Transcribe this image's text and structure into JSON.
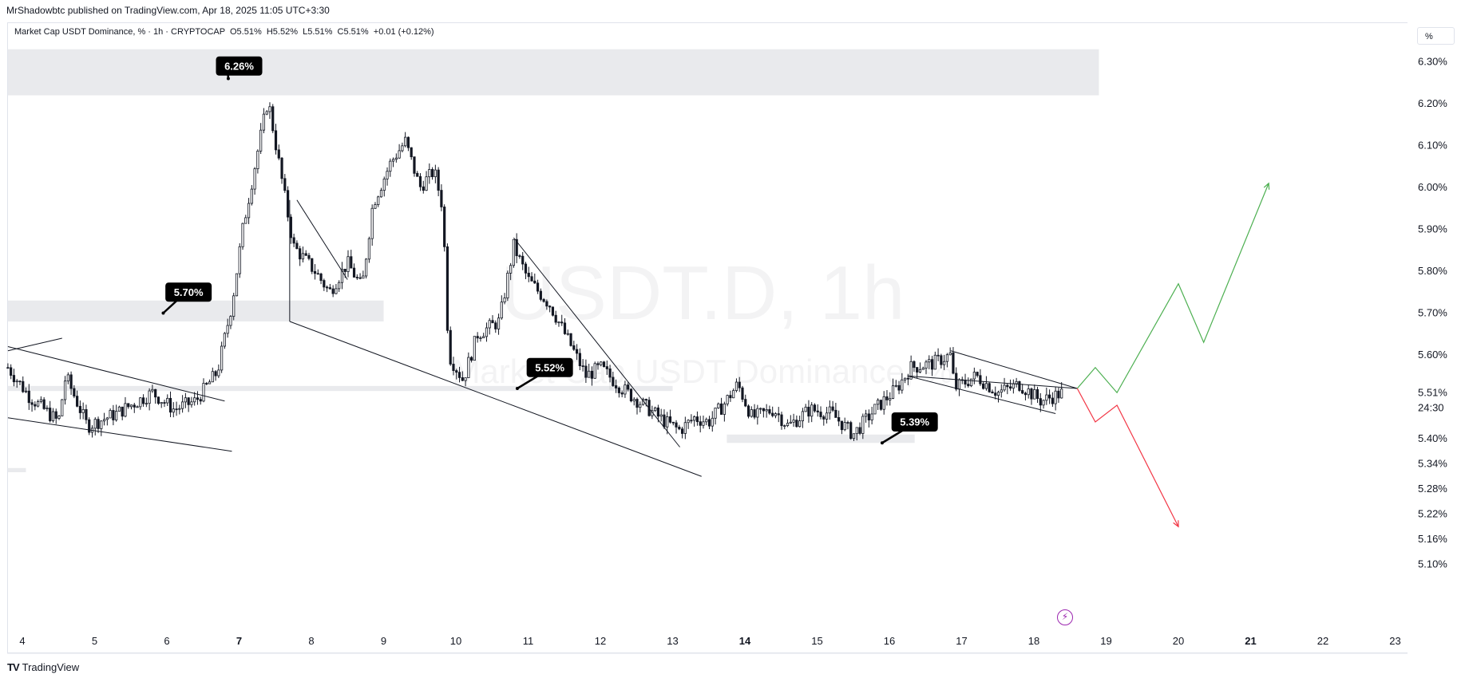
{
  "header": {
    "published": "MrShadowbtc published on TradingView.com, Apr 18, 2025 11:05 UTC+3:30",
    "legend": "Market Cap USDT Dominance, % · 1h · CRYPTOCAP  O5.51%  H5.52%  L5.51%  C5.51%  +0.01 (+0.12%)",
    "scale_button": "%"
  },
  "footer": {
    "brand": "TradingView",
    "logo": "TV"
  },
  "watermark": {
    "symbol": "USDT.D, 1h",
    "name": "Market Cap USDT Dominance, %"
  },
  "icons": {
    "bolt": "lightning-bolt-icon"
  },
  "colors": {
    "up_path": "#4caf50",
    "down_path": "#f23645",
    "zone": "#e9eaed",
    "candles": "#131722"
  },
  "chart_data": {
    "type": "candlestick",
    "title": "Market Cap USDT Dominance, %",
    "interval": "1h",
    "x_ticks": [
      {
        "day": 4,
        "label": "4",
        "bold": false
      },
      {
        "day": 5,
        "label": "5",
        "bold": false
      },
      {
        "day": 6,
        "label": "6",
        "bold": false
      },
      {
        "day": 7,
        "label": "7",
        "bold": true
      },
      {
        "day": 8,
        "label": "8",
        "bold": false
      },
      {
        "day": 9,
        "label": "9",
        "bold": false
      },
      {
        "day": 10,
        "label": "10",
        "bold": false
      },
      {
        "day": 11,
        "label": "11",
        "bold": false
      },
      {
        "day": 12,
        "label": "12",
        "bold": false
      },
      {
        "day": 13,
        "label": "13",
        "bold": false
      },
      {
        "day": 14,
        "label": "14",
        "bold": true
      },
      {
        "day": 15,
        "label": "15",
        "bold": false
      },
      {
        "day": 16,
        "label": "16",
        "bold": false
      },
      {
        "day": 17,
        "label": "17",
        "bold": false
      },
      {
        "day": 18,
        "label": "18",
        "bold": false
      },
      {
        "day": 19,
        "label": "19",
        "bold": false
      },
      {
        "day": 20,
        "label": "20",
        "bold": false
      },
      {
        "day": 21,
        "label": "21",
        "bold": true
      },
      {
        "day": 22,
        "label": "22",
        "bold": false
      },
      {
        "day": 23,
        "label": "23",
        "bold": false
      }
    ],
    "y_ticks": [
      {
        "value": 6.3,
        "label": "6.30%"
      },
      {
        "value": 6.2,
        "label": "6.20%"
      },
      {
        "value": 6.1,
        "label": "6.10%"
      },
      {
        "value": 6.0,
        "label": "6.00%"
      },
      {
        "value": 5.9,
        "label": "5.90%"
      },
      {
        "value": 5.8,
        "label": "5.80%"
      },
      {
        "value": 5.7,
        "label": "5.70%"
      },
      {
        "value": 5.6,
        "label": "5.60%"
      },
      {
        "value": 5.51,
        "label": "5.51%"
      },
      {
        "value": 5.4,
        "label": "5.40%"
      },
      {
        "value": 5.34,
        "label": "5.34%"
      },
      {
        "value": 5.28,
        "label": "5.28%"
      },
      {
        "value": 5.22,
        "label": "5.22%"
      },
      {
        "value": 5.16,
        "label": "5.16%"
      },
      {
        "value": 5.1,
        "label": "5.10%"
      }
    ],
    "current_price": {
      "value": 5.51,
      "label": "5.51%",
      "countdown": "24:30"
    },
    "price_anchors": [
      [
        3.8,
        5.57
      ],
      [
        4.1,
        5.5
      ],
      [
        4.5,
        5.44
      ],
      [
        4.6,
        5.55
      ],
      [
        4.9,
        5.43
      ],
      [
        5.3,
        5.46
      ],
      [
        5.8,
        5.51
      ],
      [
        6.1,
        5.47
      ],
      [
        6.4,
        5.49
      ],
      [
        6.7,
        5.56
      ],
      [
        6.9,
        5.72
      ],
      [
        7.05,
        5.9
      ],
      [
        7.25,
        6.08
      ],
      [
        7.4,
        6.21
      ],
      [
        7.55,
        6.06
      ],
      [
        7.75,
        5.86
      ],
      [
        8.05,
        5.8
      ],
      [
        8.25,
        5.75
      ],
      [
        8.5,
        5.82
      ],
      [
        8.7,
        5.76
      ],
      [
        8.85,
        5.96
      ],
      [
        9.1,
        6.06
      ],
      [
        9.3,
        6.11
      ],
      [
        9.5,
        6.0
      ],
      [
        9.7,
        6.04
      ],
      [
        9.82,
        5.95
      ],
      [
        9.9,
        5.6
      ],
      [
        10.1,
        5.54
      ],
      [
        10.3,
        5.65
      ],
      [
        10.6,
        5.68
      ],
      [
        10.8,
        5.86
      ],
      [
        11.0,
        5.78
      ],
      [
        11.3,
        5.72
      ],
      [
        11.6,
        5.62
      ],
      [
        11.8,
        5.55
      ],
      [
        12.0,
        5.57
      ],
      [
        12.3,
        5.52
      ],
      [
        12.6,
        5.48
      ],
      [
        12.9,
        5.44
      ],
      [
        13.1,
        5.42
      ],
      [
        13.3,
        5.45
      ],
      [
        13.5,
        5.44
      ],
      [
        13.7,
        5.48
      ],
      [
        13.9,
        5.53
      ],
      [
        14.1,
        5.45
      ],
      [
        14.4,
        5.47
      ],
      [
        14.6,
        5.43
      ],
      [
        14.9,
        5.47
      ],
      [
        15.2,
        5.46
      ],
      [
        15.5,
        5.41
      ],
      [
        15.8,
        5.47
      ],
      [
        16.1,
        5.52
      ],
      [
        16.3,
        5.57
      ],
      [
        16.6,
        5.58
      ],
      [
        16.85,
        5.6
      ],
      [
        16.9,
        5.52
      ],
      [
        17.2,
        5.55
      ],
      [
        17.5,
        5.51
      ],
      [
        17.8,
        5.53
      ],
      [
        18.1,
        5.49
      ],
      [
        18.4,
        5.51
      ]
    ],
    "zones": [
      {
        "x1": 3.8,
        "x2": 18.9,
        "y1": 6.33,
        "y2": 6.22
      },
      {
        "x1": 3.8,
        "x2": 9.0,
        "y1": 5.73,
        "y2": 5.68
      },
      {
        "x1": 3.8,
        "x2": 13.0,
        "y1": 5.526,
        "y2": 5.514
      },
      {
        "x1": 13.75,
        "x2": 16.35,
        "y1": 5.41,
        "y2": 5.39
      },
      {
        "x1": 3.8,
        "x2": 4.05,
        "y1": 5.33,
        "y2": 5.32
      }
    ],
    "trendlines": [
      {
        "x1": 3.8,
        "y1": 5.62,
        "x2": 6.8,
        "y2": 5.49
      },
      {
        "x1": 3.8,
        "y1": 5.45,
        "x2": 6.9,
        "y2": 5.37
      },
      {
        "x1": 3.8,
        "y1": 5.61,
        "x2": 4.55,
        "y2": 5.64
      },
      {
        "x1": 7.8,
        "y1": 5.97,
        "x2": 8.5,
        "y2": 5.78
      },
      {
        "x1": 7.7,
        "y1": 5.97,
        "x2": 7.7,
        "y2": 5.68
      },
      {
        "x1": 7.7,
        "y1": 5.68,
        "x2": 13.4,
        "y2": 5.31
      },
      {
        "x1": 10.8,
        "y1": 5.88,
        "x2": 13.1,
        "y2": 5.38
      },
      {
        "x1": 16.25,
        "y1": 5.55,
        "x2": 18.6,
        "y2": 5.52
      },
      {
        "x1": 16.25,
        "y1": 5.55,
        "x2": 18.3,
        "y2": 5.46
      },
      {
        "x1": 16.85,
        "y1": 5.61,
        "x2": 18.6,
        "y2": 5.52
      }
    ],
    "labels": [
      {
        "text": "6.26%",
        "x": 7.0,
        "y": 6.29,
        "tip_x": 6.85,
        "tip_y": 6.26
      },
      {
        "text": "5.70%",
        "x": 6.3,
        "y": 5.75,
        "tip_x": 5.95,
        "tip_y": 5.7
      },
      {
        "text": "5.52%",
        "x": 11.3,
        "y": 5.57,
        "tip_x": 10.85,
        "tip_y": 5.52
      },
      {
        "text": "5.39%",
        "x": 16.35,
        "y": 5.44,
        "tip_x": 15.9,
        "tip_y": 5.39
      }
    ],
    "projection_up": [
      [
        18.6,
        5.52
      ],
      [
        18.85,
        5.57
      ],
      [
        19.15,
        5.51
      ],
      [
        20.0,
        5.77
      ],
      [
        20.35,
        5.63
      ],
      [
        21.25,
        6.01
      ]
    ],
    "projection_down": [
      [
        18.6,
        5.52
      ],
      [
        18.85,
        5.44
      ],
      [
        19.15,
        5.48
      ],
      [
        20.0,
        5.19
      ]
    ]
  }
}
